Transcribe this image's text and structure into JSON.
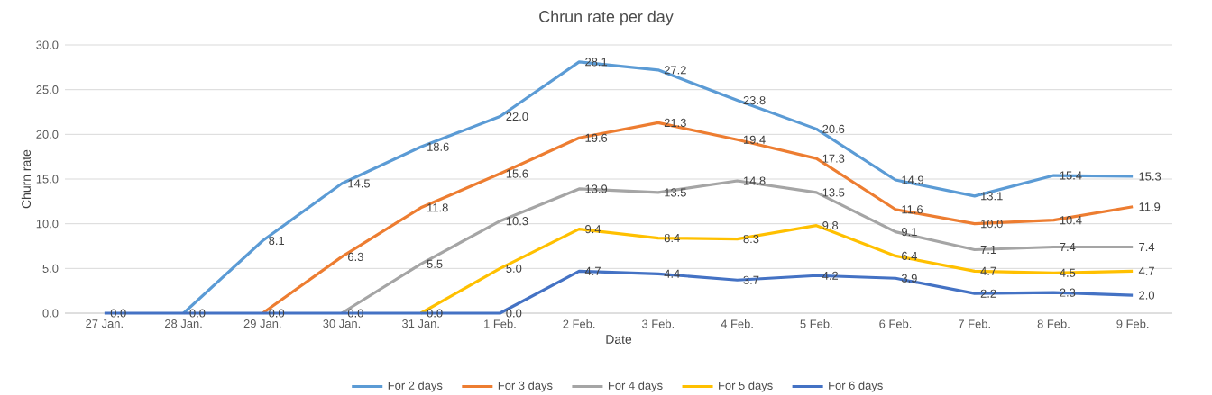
{
  "chart_data": {
    "type": "line",
    "title": "Chrun rate per day",
    "xlabel": "Date",
    "ylabel": "Churn rate",
    "categories": [
      "27 Jan.",
      "28 Jan.",
      "29 Jan.",
      "30 Jan.",
      "31 Jan.",
      "1 Feb.",
      "2 Feb.",
      "3 Feb.",
      "4 Feb.",
      "5 Feb.",
      "6 Feb.",
      "7 Feb.",
      "8 Feb.",
      "9 Feb."
    ],
    "series": [
      {
        "name": "For 2 days",
        "color": "#5b9bd5",
        "values": [
          null,
          0,
          8.1,
          14.5,
          18.6,
          22.0,
          28.1,
          27.2,
          23.8,
          20.6,
          14.9,
          13.1,
          15.4,
          15.3
        ],
        "value_labels": [
          null,
          null,
          "8.1",
          "14.5",
          "18.6",
          "22.0",
          "28.1",
          "27.2",
          "23.8",
          "20.6",
          "14.9",
          "13.1",
          "15.4",
          "15.3"
        ]
      },
      {
        "name": "For 3 days",
        "color": "#ed7d31",
        "values": [
          null,
          null,
          0,
          6.3,
          11.8,
          15.6,
          19.6,
          21.3,
          19.4,
          17.3,
          11.6,
          10.0,
          10.4,
          11.9
        ],
        "value_labels": [
          null,
          null,
          null,
          "6.3",
          "11.8",
          "15.6",
          "19.6",
          "21.3",
          "19.4",
          "17.3",
          "11.6",
          "10.0",
          "10.4",
          "11.9"
        ]
      },
      {
        "name": "For 4 days",
        "color": "#a5a5a5",
        "values": [
          null,
          null,
          null,
          0,
          5.5,
          10.3,
          13.9,
          13.5,
          14.8,
          13.5,
          9.1,
          7.1,
          7.4,
          7.4
        ],
        "value_labels": [
          null,
          null,
          null,
          null,
          "5.5",
          "10.3",
          "13.9",
          "13.5",
          "14.8",
          "13.5",
          "9.1",
          "7.1",
          "7.4",
          "7.4"
        ]
      },
      {
        "name": "For 5 days",
        "color": "#ffc000",
        "values": [
          null,
          null,
          null,
          null,
          0,
          5.0,
          9.4,
          8.4,
          8.3,
          9.8,
          6.4,
          4.7,
          4.5,
          4.7
        ],
        "value_labels": [
          null,
          null,
          null,
          null,
          null,
          "5.0",
          "9.4",
          "8.4",
          "8.3",
          "9.8",
          "6.4",
          "4.7",
          "4.5",
          "4.7"
        ]
      },
      {
        "name": "For 6 days",
        "color": "#4472c4",
        "values": [
          0,
          0,
          0,
          0,
          0,
          0,
          4.7,
          4.4,
          3.7,
          4.2,
          3.9,
          2.2,
          2.3,
          2.0
        ],
        "value_labels": [
          "0.0",
          "0.0",
          "0.0",
          "0.0",
          "0.0",
          "0.0",
          "4.7",
          "4.4",
          "3.7",
          "4.2",
          "3.9",
          "2.2",
          "2.3",
          "2.0"
        ]
      }
    ],
    "ylim": [
      0,
      30
    ],
    "yticks": [
      {
        "value": 0,
        "label": "0.0"
      },
      {
        "value": 5,
        "label": "5.0"
      },
      {
        "value": 10,
        "label": "10.0"
      },
      {
        "value": 15,
        "label": "15.0"
      },
      {
        "value": 20,
        "label": "20.0"
      },
      {
        "value": 25,
        "label": "25.0"
      },
      {
        "value": 30,
        "label": "30.0"
      }
    ],
    "grid": "y",
    "legend": "bottom",
    "marker": "none",
    "line_style": "solid"
  }
}
